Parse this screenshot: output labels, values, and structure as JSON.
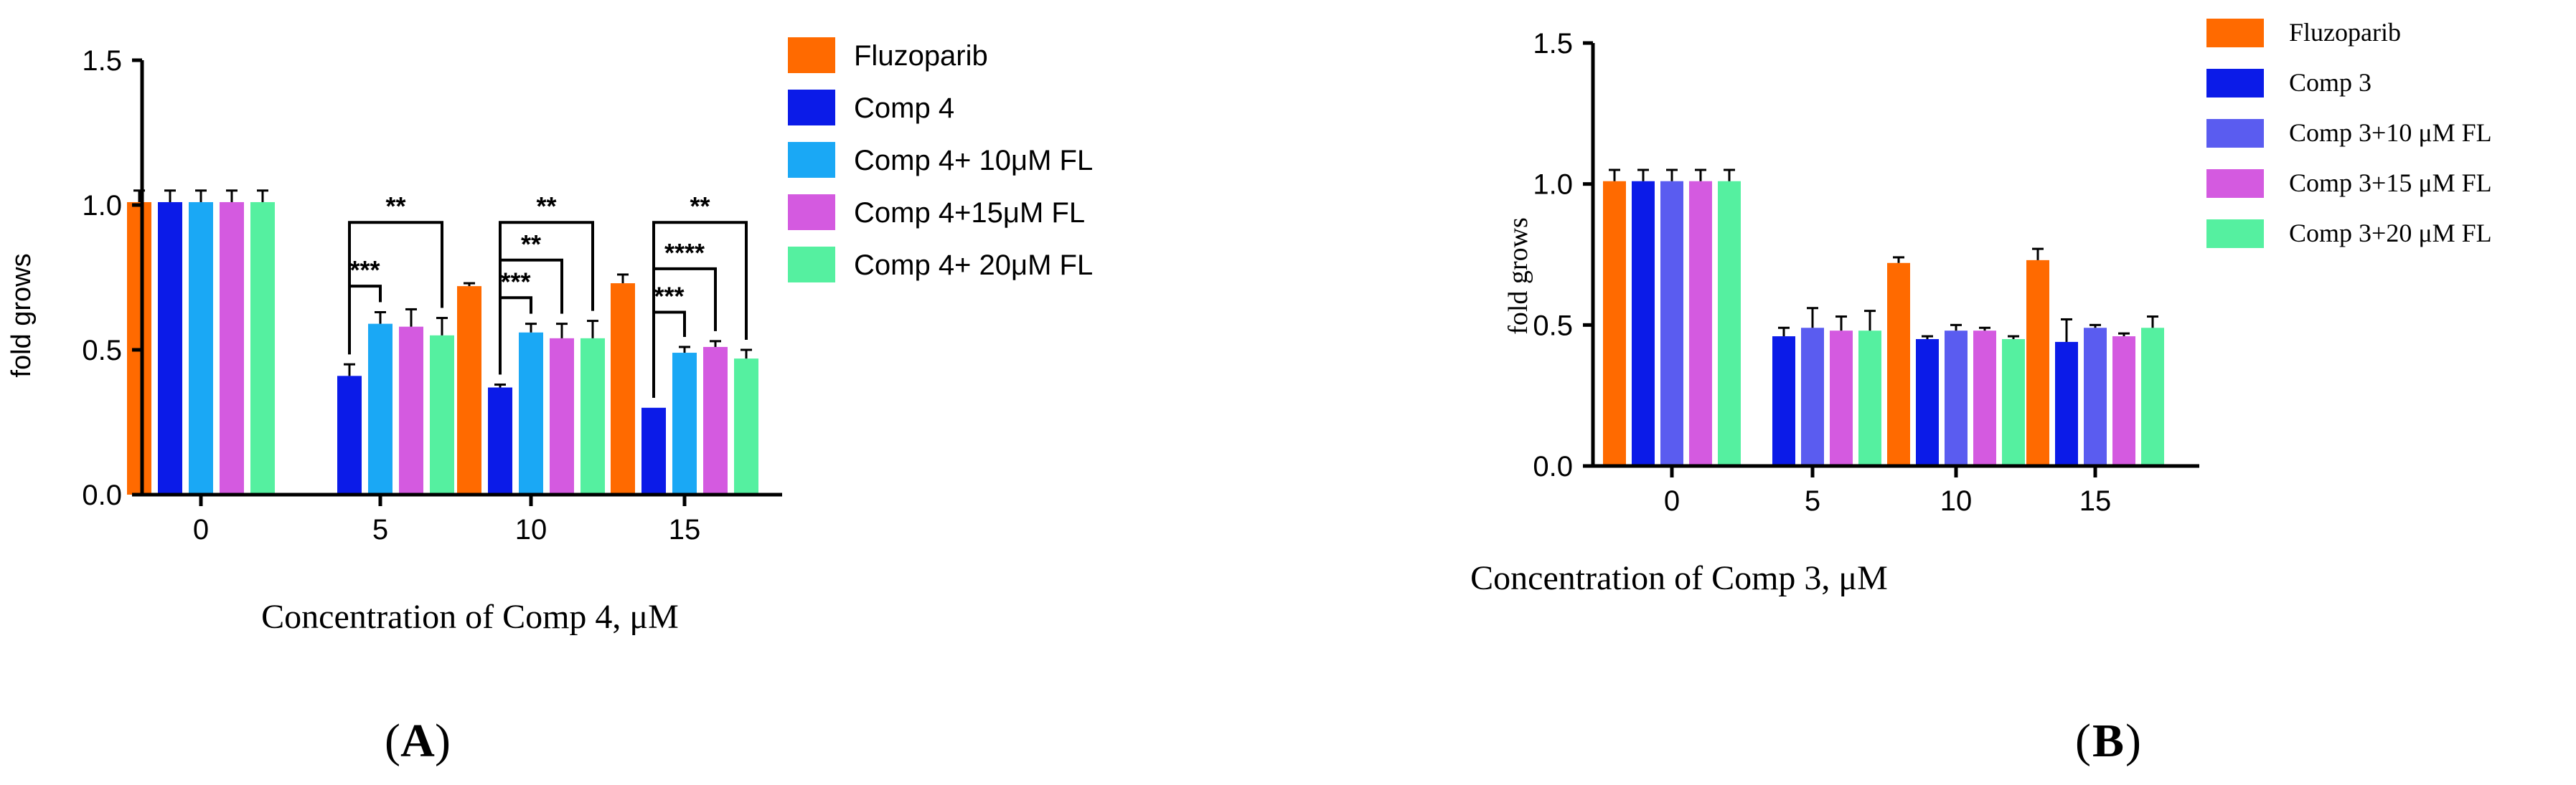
{
  "colors": {
    "Fluzoparib": "#FF6A00",
    "Comp 4": "#0B1BE8",
    "Comp 4+ 10μM FL": "#1AA8F5",
    "Comp 4+15μM FL": "#D45AE0",
    "Comp 4+ 20μM FL": "#55F0A0",
    "Comp 3": "#0B1BE8",
    "Comp 3+10 μM FL": "#5A5CF0",
    "Comp 3+15 μM FL": "#D45AE0",
    "Comp 3+20 μM FL": "#55F0A0"
  },
  "chart_data": [
    {
      "type": "bar",
      "panel": "A",
      "panel_label": "A",
      "title": "",
      "xlabel": "Concentration of Comp 4, μM",
      "ylabel": "fold grows",
      "ylim": [
        0,
        1.5
      ],
      "yticks": [
        "0.0",
        "0.5",
        "1.0",
        "1.5"
      ],
      "categories": [
        "0",
        "5",
        "10",
        "15"
      ],
      "series": [
        {
          "name": "Fluzoparib",
          "values": [
            1.01,
            null,
            0.72,
            0.73
          ],
          "errors": [
            0.04,
            null,
            0.01,
            0.03
          ]
        },
        {
          "name": "Comp 4",
          "values": [
            1.01,
            0.41,
            0.37,
            0.3
          ],
          "errors": [
            0.04,
            0.04,
            0.01,
            0.0
          ]
        },
        {
          "name": "Comp 4+ 10μM FL",
          "values": [
            1.01,
            0.59,
            0.56,
            0.49
          ],
          "errors": [
            0.04,
            0.04,
            0.03,
            0.02
          ]
        },
        {
          "name": "Comp 4+15μM FL",
          "values": [
            1.01,
            0.58,
            0.54,
            0.51
          ],
          "errors": [
            0.04,
            0.06,
            0.05,
            0.02
          ]
        },
        {
          "name": "Comp 4+ 20μM FL",
          "values": [
            1.01,
            0.55,
            0.54,
            0.47
          ],
          "errors": [
            0.04,
            0.06,
            0.06,
            0.03
          ]
        }
      ],
      "legend_position": "right",
      "annotations": [
        {
          "text": "**",
          "from_category": "5",
          "from_series": "Comp 4",
          "to_category": "5",
          "to_series": "Comp 4+ 20μM FL",
          "bracket_y": 0.94
        },
        {
          "text": "***",
          "from_category": "5",
          "from_series": "Comp 4",
          "to_category": "5",
          "to_series": "Comp 4+ 10μM FL",
          "bracket_y": 0.72
        },
        {
          "text": "**",
          "from_category": "10",
          "from_series": "Comp 4",
          "to_category": "10",
          "to_series": "Comp 4+ 20μM FL",
          "bracket_y": 0.94
        },
        {
          "text": "**",
          "from_category": "10",
          "from_series": "Comp 4",
          "to_category": "10",
          "to_series": "Comp 4+15μM FL",
          "bracket_y": 0.81
        },
        {
          "text": "***",
          "from_category": "10",
          "from_series": "Comp 4",
          "to_category": "10",
          "to_series": "Comp 4+ 10μM FL",
          "bracket_y": 0.68
        },
        {
          "text": "**",
          "from_category": "15",
          "from_series": "Comp 4",
          "to_category": "15",
          "to_series": "Comp 4+ 20μM FL",
          "bracket_y": 0.94
        },
        {
          "text": "****",
          "from_category": "15",
          "from_series": "Comp 4",
          "to_category": "15",
          "to_series": "Comp 4+15μM FL",
          "bracket_y": 0.78
        },
        {
          "text": "***",
          "from_category": "15",
          "from_series": "Comp 4",
          "to_category": "15",
          "to_series": "Comp 4+ 10μM FL",
          "bracket_y": 0.63
        }
      ]
    },
    {
      "type": "bar",
      "panel": "B",
      "panel_label": "B",
      "title": "",
      "xlabel": "Concentration of Comp 3, μM",
      "ylabel": "fold grows",
      "ylim": [
        0,
        1.5
      ],
      "yticks": [
        "0.0",
        "0.5",
        "1.0",
        "1.5"
      ],
      "categories": [
        "0",
        "5",
        "10",
        "15"
      ],
      "series": [
        {
          "name": "Fluzoparib",
          "values": [
            1.01,
            null,
            0.72,
            0.73
          ],
          "errors": [
            0.04,
            null,
            0.02,
            0.04
          ]
        },
        {
          "name": "Comp 3",
          "values": [
            1.01,
            0.46,
            0.45,
            0.44
          ],
          "errors": [
            0.04,
            0.03,
            0.01,
            0.08
          ]
        },
        {
          "name": "Comp 3+10 μM FL",
          "values": [
            1.01,
            0.49,
            0.48,
            0.49
          ],
          "errors": [
            0.04,
            0.07,
            0.02,
            0.01
          ]
        },
        {
          "name": "Comp 3+15 μM FL",
          "values": [
            1.01,
            0.48,
            0.48,
            0.46
          ],
          "errors": [
            0.04,
            0.05,
            0.01,
            0.01
          ]
        },
        {
          "name": "Comp 3+20 μM FL",
          "values": [
            1.01,
            0.48,
            0.45,
            0.49
          ],
          "errors": [
            0.04,
            0.07,
            0.01,
            0.04
          ]
        }
      ],
      "legend_position": "right"
    }
  ]
}
